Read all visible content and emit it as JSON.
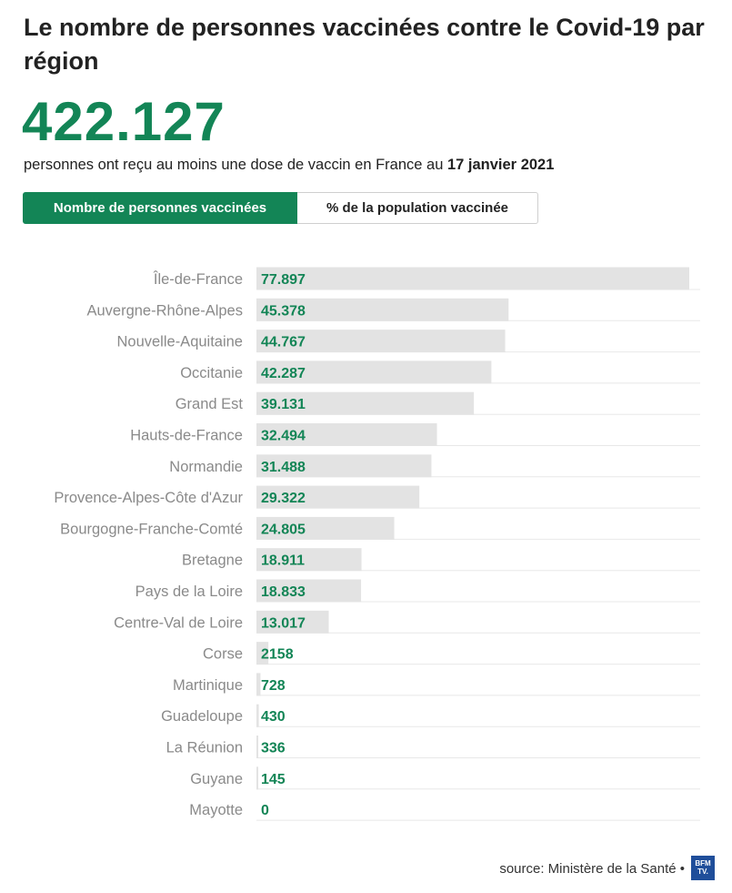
{
  "header": {
    "title": "Le nombre de personnes vaccinées contre le Covid-19 par région",
    "big_number": "422.127",
    "subtitle_text": "personnes ont reçu au moins une dose de vaccin en France au",
    "subtitle_date": "17 janvier 2021"
  },
  "toggle": {
    "active_label": "Nombre de personnes vaccinées",
    "inactive_label": "% de la population vaccinée"
  },
  "colors": {
    "accent": "#138556",
    "bar": "#e3e3e3",
    "label": "#8a8a8a",
    "gridline": "#e8e8e8"
  },
  "chart_data": {
    "type": "bar",
    "orientation": "horizontal",
    "categories": [
      "Île-de-France",
      "Auvergne-Rhône-Alpes",
      "Nouvelle-Aquitaine",
      "Occitanie",
      "Grand Est",
      "Hauts-de-France",
      "Normandie",
      "Provence-Alpes-Côte d'Azur",
      "Bourgogne-Franche-Comté",
      "Bretagne",
      "Pays de la Loire",
      "Centre-Val de Loire",
      "Corse",
      "Martinique",
      "Guadeloupe",
      "La Réunion",
      "Guyane",
      "Mayotte"
    ],
    "values": [
      77897,
      45378,
      44767,
      42287,
      39131,
      32494,
      31488,
      29322,
      24805,
      18911,
      18833,
      13017,
      2158,
      728,
      430,
      336,
      145,
      0
    ],
    "value_labels": [
      "77.897",
      "45.378",
      "44.767",
      "42.287",
      "39.131",
      "32.494",
      "31.488",
      "29.322",
      "24.805",
      "18.911",
      "18.833",
      "13.017",
      "2158",
      "728",
      "430",
      "336",
      "145",
      "0"
    ],
    "xlim": [
      0,
      80000
    ],
    "grid": true
  },
  "footer": {
    "source": "source: Ministère de la Santé •",
    "logo_text": "BFM TV."
  }
}
